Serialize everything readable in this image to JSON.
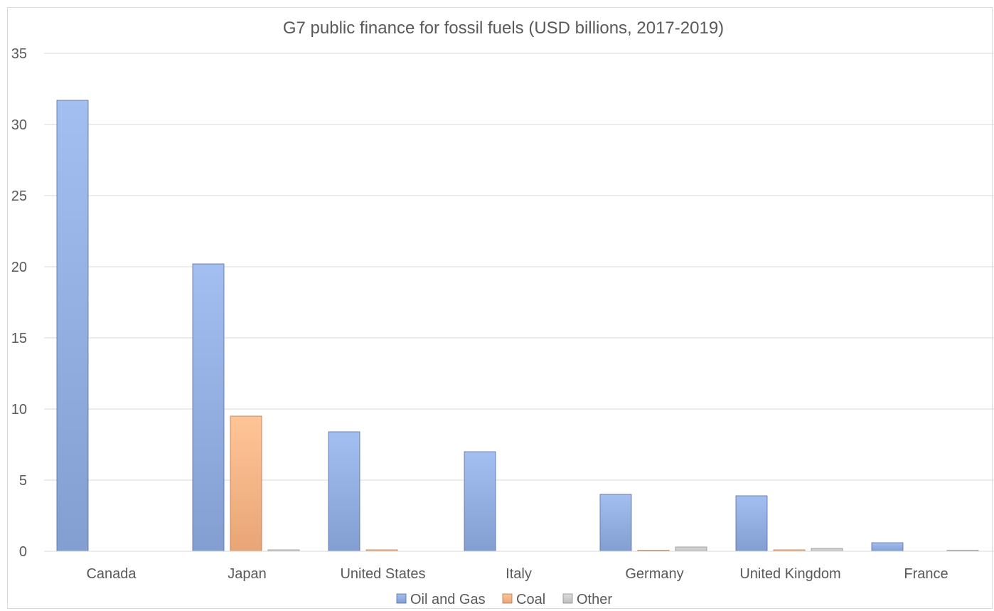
{
  "chart_data": {
    "type": "bar",
    "title": "G7 public finance for fossil fuels (USD billions, 2017-2019)",
    "xlabel": "",
    "ylabel": "",
    "categories": [
      "Canada",
      "Japan",
      "United States",
      "Italy",
      "Germany",
      "United Kingdom",
      "France"
    ],
    "series": [
      {
        "name": "Oil and Gas",
        "color": "#8faadc",
        "values": [
          31.7,
          20.2,
          8.4,
          7.0,
          4.0,
          3.9,
          0.6
        ]
      },
      {
        "name": "Coal",
        "color": "#f4b183",
        "values": [
          0,
          9.5,
          0.1,
          0,
          0.05,
          0.1,
          0
        ]
      },
      {
        "name": "Other",
        "color": "#c9c9c9",
        "values": [
          0,
          0.1,
          0,
          0,
          0.3,
          0.2,
          0.05
        ]
      }
    ],
    "ylim": [
      0,
      35
    ],
    "yticks": [
      0,
      5,
      10,
      15,
      20,
      25,
      30,
      35
    ],
    "grid": true,
    "legend_position": "bottom"
  }
}
